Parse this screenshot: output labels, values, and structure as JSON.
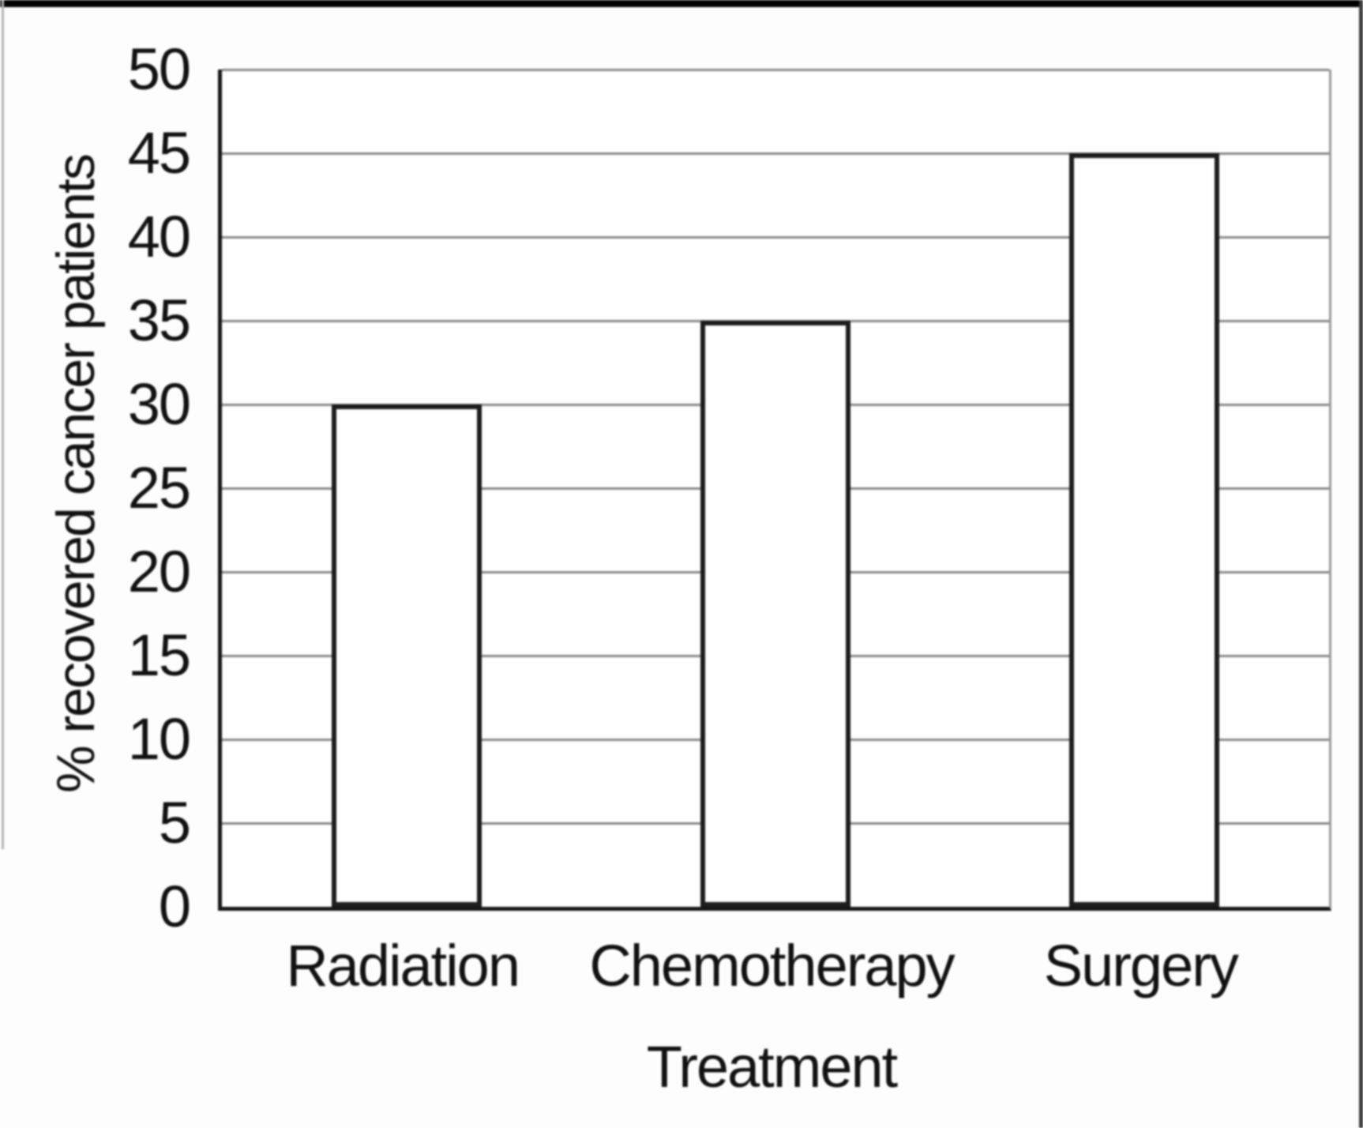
{
  "figure": {
    "background": "#fdfdfd",
    "frame": {
      "top_bar_color": "#000000",
      "right_line_color": "#3c3c3c",
      "left_line_color": "#b4b4b4"
    }
  },
  "chart_data": {
    "type": "bar",
    "title": "",
    "categories": [
      "Radiation",
      "Chemotherapy",
      "Surgery"
    ],
    "values": [
      30,
      35,
      45
    ],
    "xlabel": "Treatment",
    "ylabel": "% recovered cancer patients",
    "ylim": [
      0,
      50
    ],
    "ytick_step": 5,
    "yticks": [
      0,
      5,
      10,
      15,
      20,
      25,
      30,
      35,
      40,
      45,
      50
    ],
    "grid": "horizontal-every-tick",
    "legend": "none",
    "bar_fill": "#fefefe",
    "bar_border_color": "#1c1c1c",
    "gridline_color": "#8a8a8a",
    "axis_color": "#161616",
    "text_color": "#111111"
  }
}
